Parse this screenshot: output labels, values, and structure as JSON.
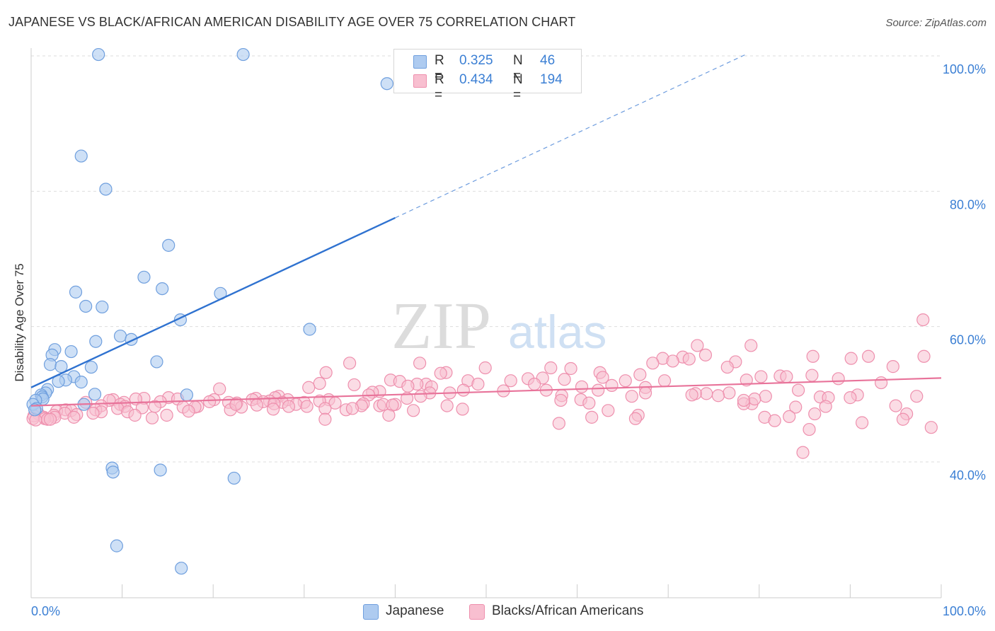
{
  "title": "JAPANESE VS BLACK/AFRICAN AMERICAN DISABILITY AGE OVER 75 CORRELATION CHART",
  "source": "Source: ZipAtlas.com",
  "watermark": {
    "zip": "ZIP",
    "atlas": "atlas"
  },
  "legend": {
    "rows": [
      {
        "r_label": "R =",
        "r_value": "0.325",
        "n_label": "N =",
        "n_value": "46"
      },
      {
        "r_label": "R =",
        "r_value": "0.434",
        "n_label": "N =",
        "n_value": "194"
      }
    ]
  },
  "bottom_legend": [
    "Japanese",
    "Blacks/African Americans"
  ],
  "colors": {
    "japanese_fill": "#aecbf0",
    "japanese_stroke": "#6f9fde",
    "japanese_line": "#2f72d0",
    "black_fill": "#f8bfd0",
    "black_stroke": "#ee8fad",
    "black_line": "#e8739a",
    "tick_label": "#3b7fd4",
    "grid": "#dddddd"
  },
  "chart_data": {
    "type": "scatter",
    "title": "JAPANESE VS BLACK/AFRICAN AMERICAN DISABILITY AGE OVER 75 CORRELATION CHART",
    "xlabel": "",
    "ylabel": "Disability Age Over 75",
    "xlim": [
      0,
      100
    ],
    "ylim": [
      20,
      102
    ],
    "x_tick_labels": [
      {
        "value": 0,
        "label": "0.0%"
      },
      {
        "value": 100,
        "label": "100.0%"
      }
    ],
    "y_tick_labels": [
      {
        "value": 40,
        "label": "40.0%"
      },
      {
        "value": 60,
        "label": "60.0%"
      },
      {
        "value": 80,
        "label": "80.0%"
      },
      {
        "value": 100,
        "label": "100.0%"
      }
    ],
    "grid": true,
    "legend_position": "top-center",
    "series": [
      {
        "name": "Japanese",
        "r": 0.325,
        "n": 46,
        "trend": {
          "x_start": 0,
          "y_start": 51.0,
          "x_solid_end": 40,
          "x_end": 78.5,
          "y_end": 100.2
        },
        "points": [
          [
            7.4,
            100.2
          ],
          [
            23.3,
            100.2
          ],
          [
            39.1,
            95.9
          ],
          [
            5.5,
            85.2
          ],
          [
            8.2,
            80.3
          ],
          [
            15.1,
            72.0
          ],
          [
            12.4,
            67.3
          ],
          [
            14.4,
            65.6
          ],
          [
            4.9,
            65.1
          ],
          [
            20.8,
            64.9
          ],
          [
            6.0,
            63.0
          ],
          [
            7.8,
            62.9
          ],
          [
            16.4,
            61.0
          ],
          [
            30.6,
            59.6
          ],
          [
            9.8,
            58.6
          ],
          [
            11.0,
            58.1
          ],
          [
            7.1,
            57.8
          ],
          [
            2.6,
            56.6
          ],
          [
            4.4,
            56.3
          ],
          [
            2.3,
            55.8
          ],
          [
            13.8,
            54.8
          ],
          [
            2.1,
            54.4
          ],
          [
            3.3,
            54.1
          ],
          [
            6.6,
            54.0
          ],
          [
            4.7,
            52.6
          ],
          [
            3.8,
            52.1
          ],
          [
            3.0,
            51.9
          ],
          [
            5.5,
            51.8
          ],
          [
            1.8,
            50.7
          ],
          [
            1.6,
            50.2
          ],
          [
            7.0,
            50.0
          ],
          [
            17.1,
            49.9
          ],
          [
            1.1,
            49.9
          ],
          [
            1.2,
            49.6
          ],
          [
            1.3,
            49.3
          ],
          [
            0.5,
            49.1
          ],
          [
            0.2,
            48.5
          ],
          [
            5.8,
            48.5
          ],
          [
            0.6,
            47.9
          ],
          [
            0.4,
            47.7
          ],
          [
            8.9,
            39.1
          ],
          [
            9.0,
            38.5
          ],
          [
            14.2,
            38.8
          ],
          [
            22.3,
            37.6
          ],
          [
            9.4,
            27.6
          ],
          [
            16.5,
            24.3
          ]
        ]
      },
      {
        "name": "Blacks/African Americans",
        "r": 0.434,
        "n": 194,
        "trend": {
          "x_start": 0,
          "y_start": 48.3,
          "x_end": 100,
          "y_end": 52.4
        },
        "points": [
          [
            98.0,
            61.0
          ],
          [
            73.2,
            57.2
          ],
          [
            79.1,
            57.2
          ],
          [
            74.1,
            55.8
          ],
          [
            92.0,
            55.6
          ],
          [
            85.9,
            55.6
          ],
          [
            98.1,
            55.6
          ],
          [
            71.6,
            55.5
          ],
          [
            69.4,
            55.3
          ],
          [
            72.3,
            55.2
          ],
          [
            90.1,
            55.3
          ],
          [
            77.4,
            54.8
          ],
          [
            70.5,
            54.9
          ],
          [
            68.3,
            54.6
          ],
          [
            35.0,
            54.6
          ],
          [
            42.7,
            54.6
          ],
          [
            94.7,
            54.1
          ],
          [
            76.5,
            54.0
          ],
          [
            49.9,
            53.9
          ],
          [
            59.3,
            53.8
          ],
          [
            57.1,
            53.9
          ],
          [
            32.4,
            53.2
          ],
          [
            45.6,
            53.2
          ],
          [
            62.5,
            53.2
          ],
          [
            66.9,
            52.9
          ],
          [
            45.0,
            53.1
          ],
          [
            82.3,
            52.7
          ],
          [
            85.8,
            52.8
          ],
          [
            83.0,
            52.6
          ],
          [
            80.2,
            52.6
          ],
          [
            62.8,
            52.5
          ],
          [
            56.2,
            52.4
          ],
          [
            88.7,
            52.3
          ],
          [
            54.6,
            52.3
          ],
          [
            58.6,
            52.2
          ],
          [
            78.6,
            52.1
          ],
          [
            39.5,
            52.1
          ],
          [
            52.7,
            52.0
          ],
          [
            48.0,
            52.0
          ],
          [
            65.3,
            52.0
          ],
          [
            69.6,
            52.0
          ],
          [
            40.5,
            51.9
          ],
          [
            93.4,
            51.7
          ],
          [
            31.7,
            51.6
          ],
          [
            43.4,
            51.5
          ],
          [
            55.3,
            51.5
          ],
          [
            49.1,
            51.5
          ],
          [
            42.4,
            51.5
          ],
          [
            35.5,
            51.4
          ],
          [
            63.8,
            51.3
          ],
          [
            41.4,
            51.2
          ],
          [
            44.0,
            51.1
          ],
          [
            60.5,
            51.1
          ],
          [
            67.5,
            51.0
          ],
          [
            30.5,
            51.0
          ],
          [
            20.7,
            50.8
          ],
          [
            56.6,
            50.6
          ],
          [
            62.3,
            50.6
          ],
          [
            47.5,
            50.6
          ],
          [
            84.3,
            50.6
          ],
          [
            51.9,
            50.5
          ],
          [
            38.3,
            50.4
          ],
          [
            37.5,
            50.3
          ],
          [
            43.8,
            50.2
          ],
          [
            76.7,
            50.2
          ],
          [
            67.5,
            50.2
          ],
          [
            74.2,
            50.1
          ],
          [
            46.0,
            50.2
          ],
          [
            73.0,
            50.1
          ],
          [
            72.6,
            49.9
          ],
          [
            58.3,
            49.8
          ],
          [
            90.8,
            49.9
          ],
          [
            37.1,
            49.9
          ],
          [
            75.5,
            49.8
          ],
          [
            80.7,
            49.7
          ],
          [
            66.0,
            49.7
          ],
          [
            97.3,
            49.7
          ],
          [
            27.2,
            49.7
          ],
          [
            42.8,
            49.7
          ],
          [
            86.7,
            49.6
          ],
          [
            87.6,
            49.5
          ],
          [
            24.7,
            49.4
          ],
          [
            90.0,
            49.5
          ],
          [
            41.3,
            49.4
          ],
          [
            12.4,
            49.4
          ],
          [
            15.1,
            49.5
          ],
          [
            26.8,
            49.5
          ],
          [
            11.5,
            49.3
          ],
          [
            16.1,
            49.3
          ],
          [
            9.0,
            49.2
          ],
          [
            20.1,
            49.2
          ],
          [
            32.7,
            49.2
          ],
          [
            60.4,
            49.2
          ],
          [
            28.2,
            49.2
          ],
          [
            24.3,
            49.2
          ],
          [
            8.6,
            49.1
          ],
          [
            26.2,
            49.0
          ],
          [
            31.7,
            49.0
          ],
          [
            25.5,
            48.9
          ],
          [
            10.2,
            48.8
          ],
          [
            14.2,
            48.9
          ],
          [
            21.7,
            48.8
          ],
          [
            6.0,
            48.8
          ],
          [
            19.6,
            48.9
          ],
          [
            27.6,
            48.8
          ],
          [
            30.0,
            48.8
          ],
          [
            33.4,
            48.7
          ],
          [
            26.7,
            48.6
          ],
          [
            22.6,
            48.7
          ],
          [
            29.1,
            48.5
          ],
          [
            9.8,
            48.5
          ],
          [
            36.5,
            48.6
          ],
          [
            38.3,
            48.3
          ],
          [
            24.8,
            48.4
          ],
          [
            7.7,
            48.3
          ],
          [
            18.3,
            48.2
          ],
          [
            18.0,
            48.1
          ],
          [
            10.3,
            48.2
          ],
          [
            13.6,
            48.2
          ],
          [
            23.1,
            48.1
          ],
          [
            28.3,
            48.2
          ],
          [
            36.3,
            48.3
          ],
          [
            16.7,
            48.1
          ],
          [
            12.2,
            48.0
          ],
          [
            9.5,
            47.9
          ],
          [
            26.6,
            47.8
          ],
          [
            7.1,
            47.7
          ],
          [
            3.8,
            47.7
          ],
          [
            4.4,
            47.6
          ],
          [
            34.6,
            47.7
          ],
          [
            21.9,
            47.7
          ],
          [
            17.3,
            47.5
          ],
          [
            2.8,
            47.5
          ],
          [
            7.7,
            47.4
          ],
          [
            3.7,
            47.2
          ],
          [
            0.8,
            47.1
          ],
          [
            10.6,
            47.4
          ],
          [
            6.8,
            47.2
          ],
          [
            5.0,
            47.0
          ],
          [
            2.5,
            46.9
          ],
          [
            1.4,
            46.6
          ],
          [
            14.9,
            46.9
          ],
          [
            11.4,
            46.9
          ],
          [
            2.6,
            46.6
          ],
          [
            0.3,
            46.8
          ],
          [
            1.5,
            46.4
          ],
          [
            1.8,
            46.3
          ],
          [
            4.7,
            46.6
          ],
          [
            13.3,
            46.5
          ],
          [
            0.2,
            46.4
          ],
          [
            0.5,
            46.2
          ],
          [
            2.1,
            46.3
          ],
          [
            58.2,
            49.1
          ],
          [
            45.7,
            48.3
          ],
          [
            40.0,
            48.5
          ],
          [
            30.3,
            48.2
          ],
          [
            38.7,
            48.5
          ],
          [
            22.5,
            48.5
          ],
          [
            39.7,
            48.4
          ],
          [
            32.3,
            47.9
          ],
          [
            35.3,
            47.9
          ],
          [
            95.0,
            48.3
          ],
          [
            87.3,
            48.2
          ],
          [
            84.0,
            48.1
          ],
          [
            47.4,
            47.8
          ],
          [
            42.0,
            47.6
          ],
          [
            86.1,
            47.1
          ],
          [
            96.2,
            47.1
          ],
          [
            79.2,
            48.6
          ],
          [
            78.3,
            48.6
          ],
          [
            63.4,
            47.6
          ],
          [
            66.7,
            46.9
          ],
          [
            61.6,
            46.6
          ],
          [
            83.3,
            46.7
          ],
          [
            66.4,
            46.4
          ],
          [
            95.8,
            46.3
          ],
          [
            80.6,
            46.6
          ],
          [
            81.7,
            46.1
          ],
          [
            91.3,
            45.8
          ],
          [
            58.0,
            45.7
          ],
          [
            98.9,
            45.1
          ],
          [
            85.5,
            44.8
          ],
          [
            84.8,
            41.4
          ],
          [
            32.3,
            46.3
          ],
          [
            39.3,
            46.9
          ],
          [
            61.3,
            48.7
          ],
          [
            79.5,
            49.3
          ],
          [
            78.3,
            49.1
          ]
        ]
      }
    ]
  }
}
